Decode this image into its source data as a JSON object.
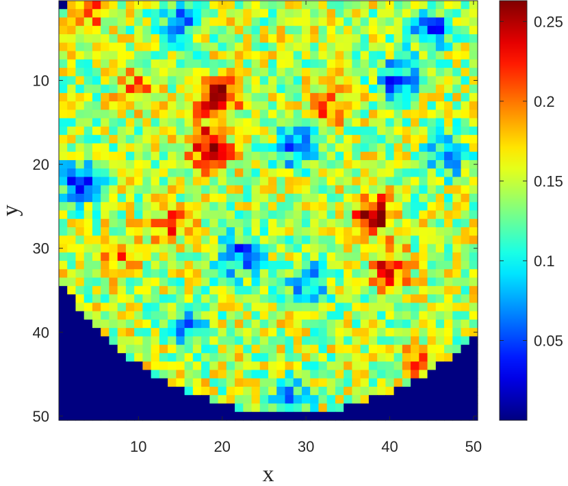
{
  "chart_data": {
    "type": "heatmap",
    "title": "",
    "xlabel": "x",
    "ylabel": "y",
    "x_range": [
      0.5,
      50.5
    ],
    "y_range": [
      0.5,
      50.5
    ],
    "y_reversed": true,
    "x_ticks": [
      "10",
      "20",
      "30",
      "40",
      "50"
    ],
    "y_ticks": [
      "10",
      "20",
      "30",
      "40",
      "50"
    ],
    "colorbar": {
      "colormap": "jet",
      "range": [
        0,
        0.263
      ],
      "ticks": [
        "0.05",
        "0.1",
        "0.15",
        "0.2",
        "0.25"
      ]
    },
    "grid_size": [
      50,
      50
    ],
    "background_value": 0,
    "domain": {
      "shape": "disk",
      "center": [
        28,
        18
      ],
      "radius": 31.6
    },
    "baseline": 0.145,
    "hotspots": [
      {
        "x": 19.5,
        "y": 12,
        "value": 0.25
      },
      {
        "x": 18,
        "y": 17,
        "value": 0.21
      },
      {
        "x": 19,
        "y": 19,
        "value": 0.21
      },
      {
        "x": 33,
        "y": 13,
        "value": 0.21
      },
      {
        "x": 38,
        "y": 26,
        "value": 0.26
      },
      {
        "x": 40,
        "y": 32.5,
        "value": 0.22
      },
      {
        "x": 14,
        "y": 27,
        "value": 0.2
      },
      {
        "x": 10,
        "y": 11,
        "value": 0.19
      },
      {
        "x": 4,
        "y": 2,
        "value": 0.2
      },
      {
        "x": 44,
        "y": 44,
        "value": 0.2
      },
      {
        "x": 8,
        "y": 31,
        "value": 0.19
      }
    ],
    "coldspots": [
      {
        "x": 41,
        "y": 10,
        "value": 0.05
      },
      {
        "x": 45,
        "y": 4,
        "value": 0.05
      },
      {
        "x": 3,
        "y": 22,
        "value": 0.05
      },
      {
        "x": 29,
        "y": 18,
        "value": 0.06
      },
      {
        "x": 22,
        "y": 31,
        "value": 0.06
      },
      {
        "x": 30,
        "y": 34,
        "value": 0.07
      },
      {
        "x": 16,
        "y": 39,
        "value": 0.08
      },
      {
        "x": 15,
        "y": 3,
        "value": 0.08
      },
      {
        "x": 47,
        "y": 19,
        "value": 0.07
      },
      {
        "x": 28,
        "y": 48,
        "value": 0.07
      }
    ]
  }
}
